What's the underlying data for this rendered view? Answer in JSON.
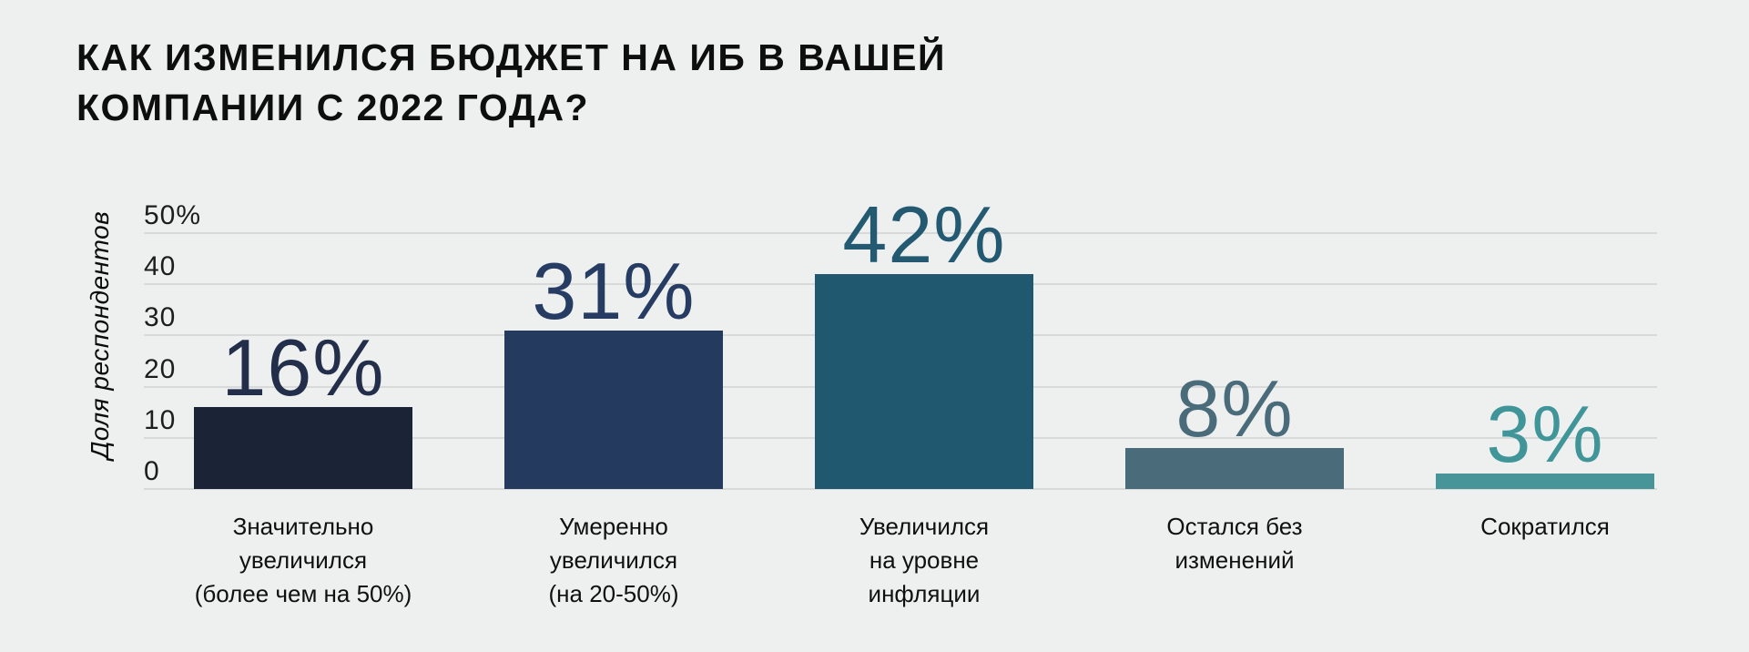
{
  "page": {
    "background_color": "#eef0f0",
    "title_line1": "КАК ИЗМЕНИЛСЯ БЮДЖЕТ НА ИБ В ВАШЕЙ",
    "title_line2": "КОМПАНИИ С 2022 ГОДА?"
  },
  "chart_data": {
    "type": "bar",
    "title": "КАК ИЗМЕНИЛСЯ БЮДЖЕТ НА ИБ В ВАШЕЙ КОМПАНИИ С 2022 ГОДА?",
    "ylabel": "Доля респондентов",
    "xlabel": "",
    "ylim": [
      0,
      50
    ],
    "grid": true,
    "legend": false,
    "yticks": [
      {
        "value": 50,
        "label": "50%"
      },
      {
        "value": 40,
        "label": "40"
      },
      {
        "value": 30,
        "label": "30"
      },
      {
        "value": 20,
        "label": "20"
      },
      {
        "value": 10,
        "label": "10"
      },
      {
        "value": 0,
        "label": "0"
      }
    ],
    "categories": [
      "Значительно увеличился (более чем на 50%)",
      "Умеренно увеличился (на 20-50%)",
      "Увеличился на уровне инфляции",
      "Остался без изменений",
      "Сократился"
    ],
    "values": [
      16,
      31,
      42,
      8,
      3
    ],
    "bars": [
      {
        "category_lines": [
          "Значительно",
          "увеличился",
          "(более чем на 50%)"
        ],
        "value": 16,
        "value_label": "16%",
        "bar_color": "#1b2336",
        "value_label_color": "#232e4a"
      },
      {
        "category_lines": [
          "Умеренно",
          "увеличился",
          "(на 20-50%)"
        ],
        "value": 31,
        "value_label": "31%",
        "bar_color": "#243a5e",
        "value_label_color": "#263c63"
      },
      {
        "category_lines": [
          "Увеличился",
          "на уровне",
          "инфляции"
        ],
        "value": 42,
        "value_label": "42%",
        "bar_color": "#20596f",
        "value_label_color": "#235a72"
      },
      {
        "category_lines": [
          "Остался без",
          "изменений"
        ],
        "value": 8,
        "value_label": "8%",
        "bar_color": "#4a6b7a",
        "value_label_color": "#4a6b7a"
      },
      {
        "category_lines": [
          "Сократился"
        ],
        "value": 3,
        "value_label": "3%",
        "bar_color": "#479599",
        "value_label_color": "#3f9598"
      }
    ],
    "gridline_color": "#d8d9d9",
    "tick_color": "#1d1d1d",
    "category_color": "#101010"
  }
}
